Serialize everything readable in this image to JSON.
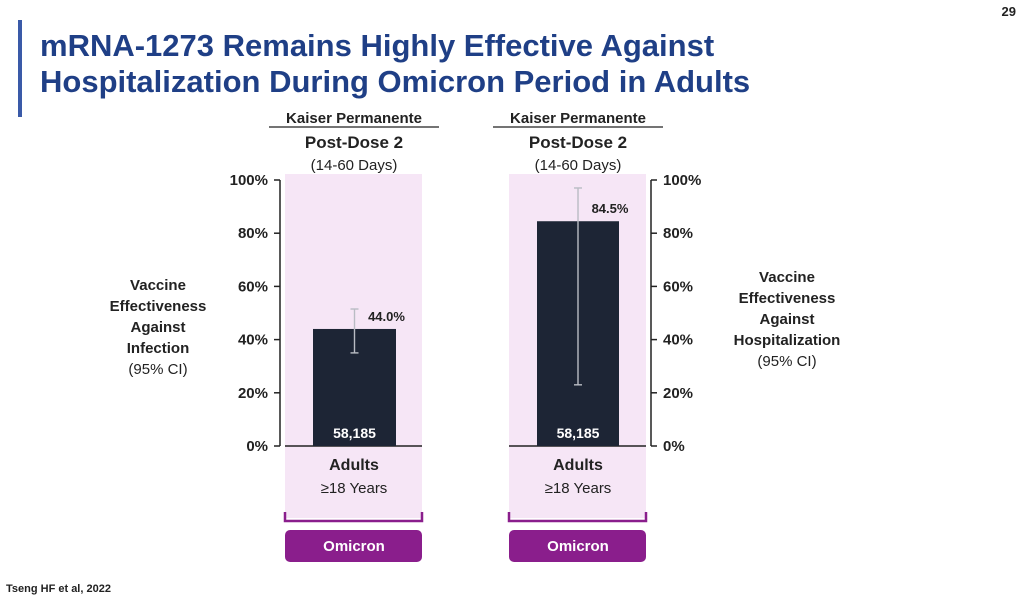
{
  "slide": {
    "page_number": "29",
    "title": "mRNA-1273 Remains Highly Effective Against\nHospitalization During Omicron Period in Adults",
    "footnote": "Tseng HF et al, 2022",
    "accent_color": "#3a5aa8",
    "title_color": "#1f3f86"
  },
  "left_axis_label": {
    "title": "Vaccine\nEffectiveness\nAgainst\nInfection",
    "sub": "(95% CI)"
  },
  "right_axis_label": {
    "title": "Vaccine\nEffectiveness\nAgainst\nHospitalization",
    "sub": "(95% CI)"
  },
  "chart_data": [
    {
      "type": "bar",
      "outcome": "Infection",
      "header": {
        "source": "Kaiser Permanente",
        "dose": "Post-Dose 2",
        "window": "(14-60 Days)"
      },
      "categories": [
        "Adults ≥18 Years"
      ],
      "category_lines": [
        "Adults",
        "≥18 Years"
      ],
      "values": [
        44.0
      ],
      "ci": [
        [
          35,
          51.5
        ]
      ],
      "value_labels": [
        "44.0%"
      ],
      "n_labels": [
        "58,185"
      ],
      "period": "Omicron",
      "ylim": [
        0,
        100
      ],
      "yticks": [
        "0%",
        "20%",
        "40%",
        "60%",
        "80%",
        "100%"
      ],
      "axis_side": "left",
      "colors": {
        "bar": "#1d2535",
        "panel": "#f6e6f6",
        "period": "#8a1e8c"
      }
    },
    {
      "type": "bar",
      "outcome": "Hospitalization",
      "header": {
        "source": "Kaiser Permanente",
        "dose": "Post-Dose 2",
        "window": "(14-60 Days)"
      },
      "categories": [
        "Adults ≥18 Years"
      ],
      "category_lines": [
        "Adults",
        "≥18 Years"
      ],
      "values": [
        84.5
      ],
      "ci": [
        [
          23,
          97
        ]
      ],
      "value_labels": [
        "84.5%"
      ],
      "n_labels": [
        "58,185"
      ],
      "period": "Omicron",
      "ylim": [
        0,
        100
      ],
      "yticks": [
        "0%",
        "20%",
        "40%",
        "60%",
        "80%",
        "100%"
      ],
      "axis_side": "right",
      "colors": {
        "bar": "#1d2535",
        "panel": "#f6e6f6",
        "period": "#8a1e8c"
      }
    }
  ]
}
